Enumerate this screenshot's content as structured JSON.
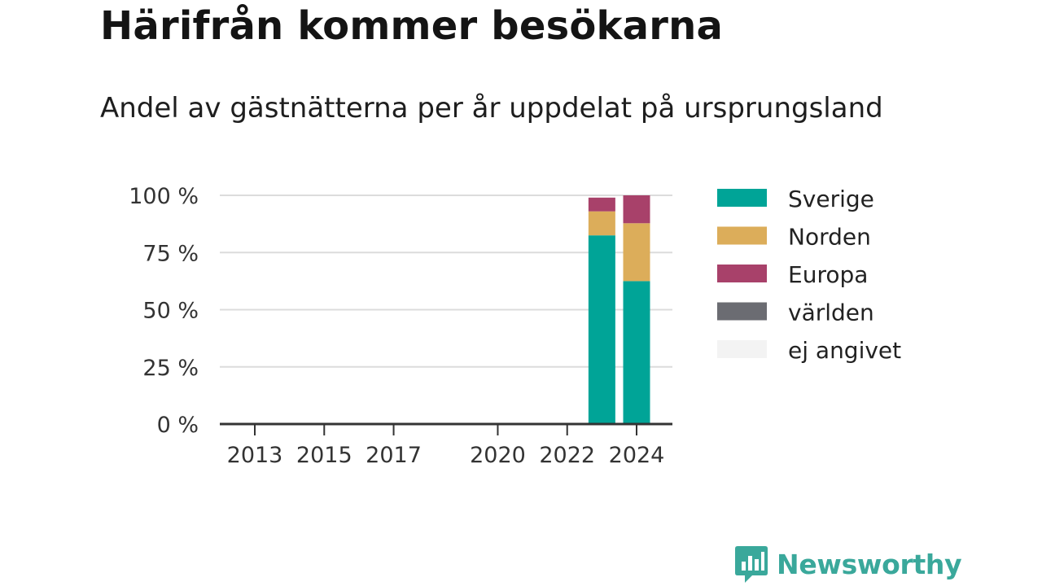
{
  "title": "Härifrån kommer besökarna",
  "subtitle": "Andel av gästnätterna per år uppdelat på ursprungsland",
  "chart_data": {
    "type": "bar",
    "stacked": true,
    "x_ticks": [
      2013,
      2015,
      2017,
      2020,
      2022,
      2024
    ],
    "x_domain": [
      2013,
      2024
    ],
    "categories": [
      2023,
      2024
    ],
    "ylim": [
      0,
      100
    ],
    "y_ticks": [
      {
        "value": 0,
        "label": "0 %"
      },
      {
        "value": 25,
        "label": "25 %"
      },
      {
        "value": 50,
        "label": "50 %"
      },
      {
        "value": 75,
        "label": "75 %"
      },
      {
        "value": 100,
        "label": "100 %"
      }
    ],
    "grid": true,
    "legend_position": "right",
    "series": [
      {
        "name": "Sverige",
        "color": "#00a497",
        "values": [
          82.5,
          62.5
        ]
      },
      {
        "name": "Norden",
        "color": "#dcad5a",
        "values": [
          10.5,
          25.3
        ]
      },
      {
        "name": "Europa",
        "color": "#a8416a",
        "values": [
          6.0,
          12.2
        ]
      },
      {
        "name": "världen",
        "color": "#6b6c72",
        "values": [
          0,
          0
        ]
      },
      {
        "name": "ej angivet",
        "color": "#f3f3f3",
        "values": [
          0,
          0
        ]
      }
    ]
  },
  "brand": {
    "name": "Newsworthy",
    "color": "#3aa89b"
  }
}
